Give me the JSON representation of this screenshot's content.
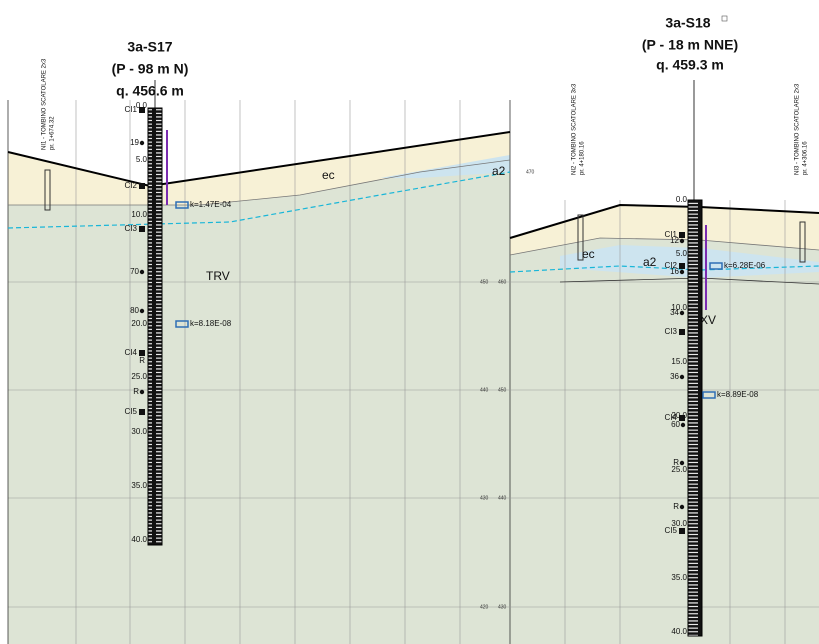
{
  "boreholes": [
    {
      "name": "3a-S17",
      "position": "(P - 98 m N)",
      "elevation": "q. 456.6 m",
      "depths": [
        "0.0",
        "5.0",
        "10.0",
        "20.0",
        "25.0",
        "30.0",
        "35.0",
        "40.0"
      ],
      "samples": [
        "CI1",
        "CI2",
        "CI3",
        "CI4",
        "CI5"
      ],
      "spt": [
        "19",
        "70",
        "80",
        "R",
        "R"
      ],
      "permeability": [
        "k=1.47E-04",
        "k=8.18E-08"
      ]
    },
    {
      "name": "3a-S18",
      "position": "(P - 18 m NNE)",
      "elevation": "q. 459.3 m",
      "depths": [
        "0.0",
        "5.0",
        "10.0",
        "15.0",
        "20.0",
        "25.0",
        "30.0",
        "35.0",
        "40.0"
      ],
      "samples": [
        "CI1",
        "CI2",
        "CI3",
        "CI4",
        "CI5"
      ],
      "spt": [
        "12",
        "16",
        "34",
        "36",
        "60",
        "R",
        "R"
      ],
      "permeability": [
        "k=6.28E-06",
        "k=8.89E-08"
      ]
    }
  ],
  "layers": [
    "ec",
    "TRV",
    "a2",
    "ec",
    "a2",
    "XV"
  ],
  "elevations": [
    "470",
    "450",
    "460",
    "440",
    "450",
    "430",
    "440",
    "420",
    "430"
  ],
  "structures": [
    {
      "name": "NI1 - TOMBINO SCATOLARE 2x3",
      "chainage": "pr. 1+674.32"
    },
    {
      "name": "NI2 - TOMBINO SCATOLARE 3x3",
      "chainage": "pr. 4+180.16"
    },
    {
      "name": "NI3 - TOMBINO SCATOLARE 2x3",
      "chainage": "pr. 4+306.16"
    }
  ]
}
